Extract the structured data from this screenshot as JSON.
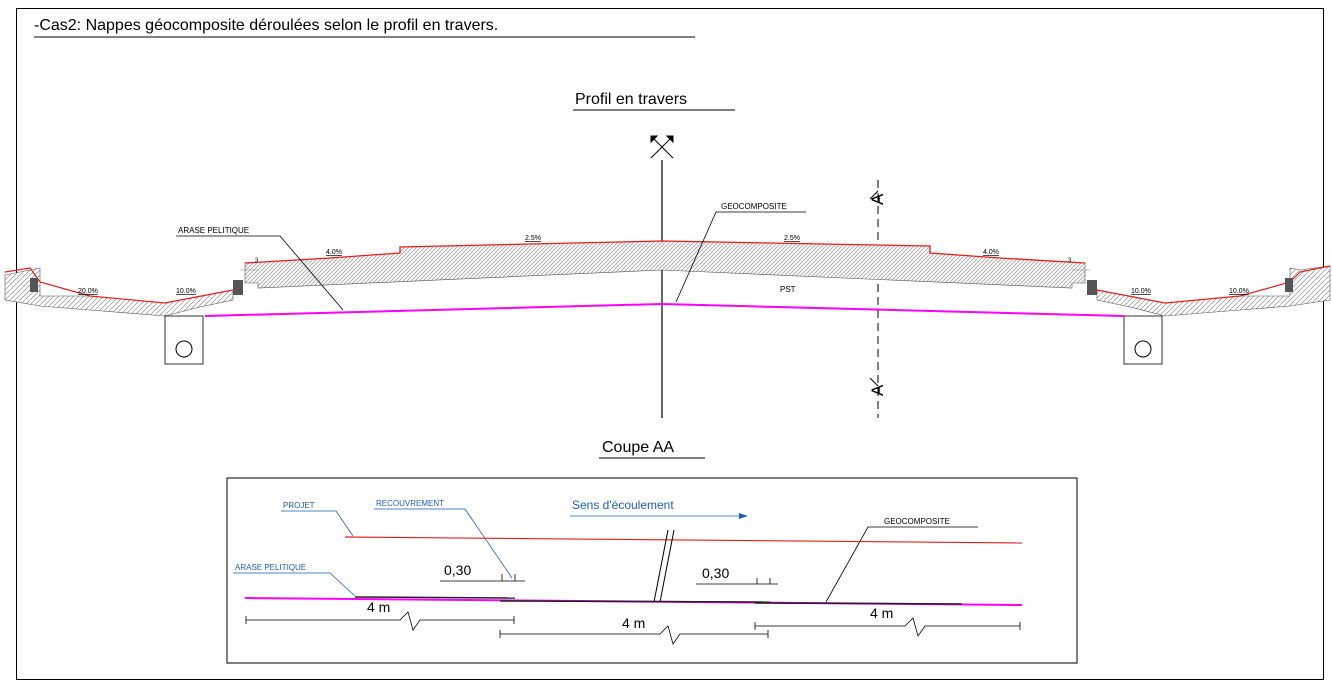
{
  "header": {
    "case_title": "-Cas2: Nappes géocomposite déroulées selon le profil en travers."
  },
  "profile": {
    "title": "Profil en travers",
    "label_arase": "ARASE PELITIQUE",
    "label_geocomposite": "GEOCOMPOSITE",
    "label_pst": "PST",
    "section_marker": "A",
    "slopes": {
      "far_left": "20.0%",
      "left_ditch": "10.0%",
      "left_shoulder": "4.0%",
      "left_lane": "2.5%",
      "right_lane": "2.5%",
      "right_shoulder": "4.0%",
      "right_ditch": "10.0%",
      "far_right": "10.0%"
    },
    "small_marks": {
      "left": "3",
      "right": "3"
    }
  },
  "section": {
    "title": "Coupe AA",
    "label_projet": "PROJET",
    "label_recouvrement": "RECOUVREMENT",
    "label_arase": "ARASE PELITIQUE",
    "label_geocomposite": "GEOCOMPOSITE",
    "flow_direction": "Sens d'écoulement",
    "overlap_1": "0,30",
    "overlap_2": "0,30",
    "length_1": "4 m",
    "length_2": "4 m",
    "length_3": "4 m"
  },
  "colors": {
    "red_line": "#e0201f",
    "magenta_line": "#ff00ff",
    "blue_text": "#1f5fb4"
  }
}
